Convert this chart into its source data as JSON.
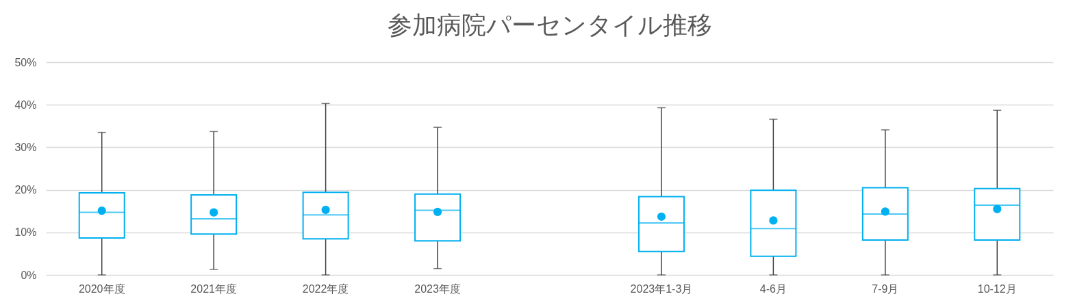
{
  "chart_data": {
    "type": "box",
    "title": "参加病院パーセンタイル推移",
    "categories": [
      "2020年度",
      "2021年度",
      "2022年度",
      "2023年度",
      null,
      "2023年1-3月",
      "4-6月",
      "7-9月",
      "10-12月"
    ],
    "boxes": [
      {
        "low": 0,
        "q1": 8.7,
        "median": 14.7,
        "q3": 19.3,
        "high": 33.5,
        "mean": 15.1
      },
      {
        "low": 1.3,
        "q1": 9.6,
        "median": 13.2,
        "q3": 18.8,
        "high": 33.7,
        "mean": 14.7
      },
      {
        "low": 0,
        "q1": 8.5,
        "median": 14.1,
        "q3": 19.4,
        "high": 40.3,
        "mean": 15.3
      },
      {
        "low": 1.5,
        "q1": 8.0,
        "median": 15.2,
        "q3": 19.0,
        "high": 34.7,
        "mean": 14.8
      },
      null,
      {
        "low": 0,
        "q1": 5.5,
        "median": 12.2,
        "q3": 18.4,
        "high": 39.3,
        "mean": 13.7
      },
      {
        "low": 0,
        "q1": 4.4,
        "median": 10.9,
        "q3": 19.9,
        "high": 36.6,
        "mean": 12.8
      },
      {
        "low": 0,
        "q1": 8.2,
        "median": 14.3,
        "q3": 20.5,
        "high": 34.1,
        "mean": 14.9
      },
      {
        "low": 0,
        "q1": 8.2,
        "median": 16.4,
        "q3": 20.3,
        "high": 38.7,
        "mean": 15.5
      }
    ],
    "color": "#00b0f0",
    "ylim": [
      0,
      50
    ],
    "yticks": [
      {
        "value": 0,
        "label": "0%"
      },
      {
        "value": 10,
        "label": "10%"
      },
      {
        "value": 20,
        "label": "20%"
      },
      {
        "value": 30,
        "label": "30%"
      },
      {
        "value": 40,
        "label": "40%"
      },
      {
        "value": 50,
        "label": "50%"
      }
    ],
    "grid": "y"
  }
}
